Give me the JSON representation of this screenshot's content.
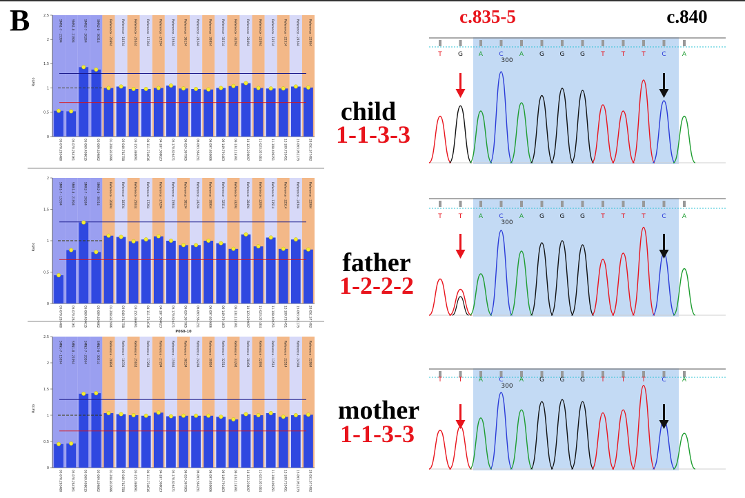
{
  "panel_label": "B",
  "variant_labels": {
    "left": "c.835-5",
    "right": "c.840"
  },
  "colors": {
    "red": "#e8141c",
    "probe_blue": "#9a9ff0",
    "probe_orange": "#f3b888",
    "probe_lavender": "#d7d9f8",
    "bar_blue": "#2f48e0",
    "dot_yellow": "#f3ec35",
    "highlight_blue": "#b9d4f2"
  },
  "individuals": [
    {
      "name": "child",
      "code": "1-1-3-3",
      "chart_data": {
        "type": "bar",
        "ylabel": "Ratio",
        "ylim": [
          0,
          2.5
        ],
        "yticks": [
          "0",
          "0.5",
          "1",
          "1.5",
          "2",
          "2.5"
        ],
        "upper_threshold": 1.3,
        "lower_threshold": 0.7,
        "reference_line": 1.0,
        "probes": [
          "SMN1-7 - 15394",
          "SMN1-8 - 21994",
          "SMN2-7 - 20264",
          "SMN2-8 - 30314",
          "Reference - 20894",
          "Reference - 18334",
          "Reference - 25044",
          "Reference - 17264",
          "Reference - 27294",
          "Reference - 15944",
          "Reference - 38134",
          "Reference - 24244",
          "Reference - 39954",
          "Reference - 32514",
          "Reference - 33294",
          "Reference - 28494",
          "Reference - 22094",
          "Reference - 13514",
          "Reference - 22514",
          "Reference - 24344",
          "Reference - 22984"
        ],
        "positions": [
          "05-070.283480",
          "05-070.284161",
          "05-069.408615",
          "05-069.409862",
          "01-208.832996",
          "03-040.782758",
          "03-155.386691",
          "04-111.734616",
          "04-187.308023",
          "05-170.816471",
          "06-024.367905",
          "06-063.584251",
          "06-097.605606",
          "06-149.791403",
          "06-134.118391",
          "10-123.239097",
          "11-023.057404",
          "11-108.409251",
          "12-109.735451",
          "15-063.952175",
          "20-051.577492"
        ],
        "values": [
          0.53,
          0.52,
          1.43,
          1.38,
          1.0,
          1.03,
          0.98,
          0.98,
          1.0,
          1.05,
          0.99,
          0.98,
          0.97,
          1.0,
          1.04,
          1.1,
          1.0,
          0.99,
          0.99,
          1.03,
          1.01
        ]
      }
    },
    {
      "name": "father",
      "code": "1-2-2-2",
      "chart_data": {
        "type": "bar",
        "ylabel": "Ratio",
        "ylim": [
          0,
          2
        ],
        "yticks": [
          "0",
          "0.5",
          "1",
          "1.5",
          "2"
        ],
        "upper_threshold": 1.3,
        "lower_threshold": 0.7,
        "reference_line": 1.0,
        "probes": [
          "SMN1-7 - 15394",
          "SMN1-8 - 21994",
          "SMN2-7 - 20264",
          "SMN2-8 - 30314",
          "Reference - 20894",
          "Reference - 18334",
          "Reference - 25044",
          "Reference - 17264",
          "Reference - 27294",
          "Reference - 15944",
          "Reference - 38134",
          "Reference - 24244",
          "Reference - 39954",
          "Reference - 32514",
          "Reference - 33294",
          "Reference - 28494",
          "Reference - 22094",
          "Reference - 13514",
          "Reference - 22514",
          "Reference - 24344",
          "Reference - 22984"
        ],
        "positions": [
          "05-070.283480",
          "05-070.284161",
          "05-069.408615",
          "05-069.409862",
          "01-208.832996",
          "03-040.782758",
          "03-155.386691",
          "04-111.734616",
          "04-187.308023",
          "05-170.816471",
          "06-024.367905",
          "06-063.584251",
          "06-097.605606",
          "06-149.791403",
          "06-134.118391",
          "10-123.239097",
          "11-023.057404",
          "11-108.409251",
          "12-109.735451",
          "15-063.952175",
          "20-051.577492"
        ],
        "values": [
          0.45,
          0.85,
          1.29,
          0.82,
          1.08,
          1.06,
          0.99,
          1.02,
          1.07,
          1.0,
          0.93,
          0.93,
          1.0,
          0.96,
          0.87,
          1.1,
          0.91,
          1.05,
          0.87,
          1.02,
          0.86
        ]
      }
    },
    {
      "name": "mother",
      "code": "1-1-3-3",
      "chart_data": {
        "type": "bar",
        "title": "P060-10",
        "ylabel": "Ratio",
        "ylim": [
          0,
          2.5
        ],
        "yticks": [
          "0",
          "0.5",
          "1",
          "1.5",
          "2",
          "2.5"
        ],
        "upper_threshold": 1.3,
        "lower_threshold": 0.7,
        "reference_line": 1.0,
        "probes": [
          "SMN1-7 - 15394",
          "SMN1-8 - 21994",
          "SMN2-7 - 20264",
          "SMN2-8 - 30314",
          "Reference - 20894",
          "Reference - 18334",
          "Reference - 25044",
          "Reference - 17264",
          "Reference - 27294",
          "Reference - 15944",
          "Reference - 38134",
          "Reference - 24244",
          "Reference - 39954",
          "Reference - 32514",
          "Reference - 33294",
          "Reference - 28494",
          "Reference - 22094",
          "Reference - 13514",
          "Reference - 22514",
          "Reference - 24344",
          "Reference - 22984"
        ],
        "positions": [
          "05-070.283480",
          "05-070.284161",
          "05-069.408615",
          "05-069.409862",
          "01-208.832996",
          "03-040.782758",
          "03-155.386691",
          "04-111.734616",
          "04-187.308023",
          "05-170.816471",
          "06-024.367905",
          "06-063.584251",
          "06-097.605606",
          "06-149.791403",
          "06-134.118391",
          "10-123.239097",
          "11-023.057404",
          "11-108.409251",
          "12-109.735451",
          "15-063.952175",
          "20-051.577492"
        ],
        "values": [
          0.45,
          0.46,
          1.41,
          1.42,
          1.04,
          1.02,
          1.0,
          0.99,
          1.05,
          0.98,
          0.99,
          0.99,
          0.99,
          0.97,
          0.92,
          1.02,
          1.0,
          1.04,
          0.97,
          1.0,
          1.01
        ]
      }
    }
  ],
  "sequencing": {
    "bases": [
      "T",
      "G",
      "A",
      "C",
      "A",
      "G",
      "G",
      "G",
      "T",
      "T",
      "T",
      "C",
      "A"
    ],
    "base_colors": {
      "A": "#1d9c2f",
      "C": "#2a3ad8",
      "G": "#111111",
      "T": "#e8141c"
    },
    "position_marker": "300",
    "tracks": [
      {
        "bases": [
          "T",
          "G",
          "A",
          "C",
          "A",
          "G",
          "G",
          "G",
          "T",
          "T",
          "T",
          "C",
          "A"
        ],
        "peak_heights": [
          0.45,
          0.55,
          0.5,
          0.88,
          0.58,
          0.65,
          0.72,
          0.7,
          0.56,
          0.5,
          0.8,
          0.6,
          0.45
        ]
      },
      {
        "bases": [
          "T",
          "T",
          "A",
          "C",
          "A",
          "G",
          "G",
          "G",
          "T",
          "T",
          "T",
          "C",
          "A"
        ],
        "peak_heights": [
          0.35,
          0.25,
          0.4,
          0.82,
          0.62,
          0.7,
          0.72,
          0.68,
          0.54,
          0.6,
          0.85,
          0.6,
          0.45
        ]
      },
      {
        "bases": [
          "T",
          "T",
          "A",
          "C",
          "A",
          "G",
          "G",
          "G",
          "T",
          "T",
          "T",
          "C",
          "A"
        ],
        "peak_heights": [
          0.38,
          0.42,
          0.5,
          0.75,
          0.58,
          0.66,
          0.68,
          0.66,
          0.55,
          0.58,
          0.82,
          0.48,
          0.35
        ]
      }
    ]
  }
}
